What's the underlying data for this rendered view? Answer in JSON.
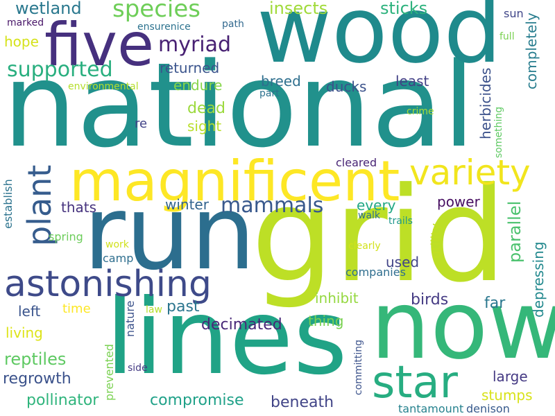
{
  "words": [
    {
      "text": "national",
      "color": "#21918c",
      "v": false
    },
    {
      "text": "wood",
      "color": "#1f8a8c",
      "v": false
    },
    {
      "text": "run",
      "color": "#2c6e8e",
      "v": false
    },
    {
      "text": "grid",
      "color": "#bddf26",
      "v": false
    },
    {
      "text": "now",
      "color": "#35b779",
      "v": false
    },
    {
      "text": "lines",
      "color": "#20a386",
      "v": false
    },
    {
      "text": "five",
      "color": "#46307e",
      "v": false
    },
    {
      "text": "magnificent",
      "color": "#fde725",
      "v": false
    },
    {
      "text": "variety",
      "color": "#f1e51d",
      "v": false
    },
    {
      "text": "astonishing",
      "color": "#3e4a89",
      "v": false
    },
    {
      "text": "star",
      "color": "#27ad81",
      "v": false
    },
    {
      "text": "plant",
      "color": "#365c8d",
      "v": true
    },
    {
      "text": "species",
      "color": "#6ece58",
      "v": false
    },
    {
      "text": "myriad",
      "color": "#482173",
      "v": false
    },
    {
      "text": "supported",
      "color": "#29af7f",
      "v": false
    },
    {
      "text": "mammals",
      "color": "#38588c",
      "v": false
    },
    {
      "text": "wetland",
      "color": "#2a788e",
      "v": false
    },
    {
      "text": "insects",
      "color": "#a0da39",
      "v": false
    },
    {
      "text": "sticks",
      "color": "#2db27d",
      "v": false
    },
    {
      "text": "returned",
      "color": "#3a548c",
      "v": false
    },
    {
      "text": "endure",
      "color": "#86d549",
      "v": false
    },
    {
      "text": "dead",
      "color": "#9bd93c",
      "v": false
    },
    {
      "text": "sight",
      "color": "#b8de29",
      "v": false
    },
    {
      "text": "re",
      "color": "#414287",
      "v": false
    },
    {
      "text": "breed",
      "color": "#2e6f8e",
      "v": false
    },
    {
      "text": "ducks",
      "color": "#3b528b",
      "v": false
    },
    {
      "text": "least",
      "color": "#424086",
      "v": false
    },
    {
      "text": "herbicides",
      "color": "#3b518b",
      "v": true
    },
    {
      "text": "completely",
      "color": "#287d8e",
      "v": true
    },
    {
      "text": "winter",
      "color": "#32648e",
      "v": false
    },
    {
      "text": "thats",
      "color": "#46337e",
      "v": false
    },
    {
      "text": "power",
      "color": "#470e61",
      "v": false
    },
    {
      "text": "every",
      "color": "#22a884",
      "v": false
    },
    {
      "text": "used",
      "color": "#414487",
      "v": false
    },
    {
      "text": "parallel",
      "color": "#4ac16d",
      "v": true
    },
    {
      "text": "depressing",
      "color": "#23898e",
      "v": true
    },
    {
      "text": "utility",
      "color": "#c2df23",
      "v": true
    },
    {
      "text": "inhibit",
      "color": "#95d840",
      "v": false
    },
    {
      "text": "birds",
      "color": "#443a83",
      "v": false
    },
    {
      "text": "far",
      "color": "#2a778e",
      "v": false
    },
    {
      "text": "left",
      "color": "#3a548c",
      "v": false
    },
    {
      "text": "time",
      "color": "#fde725",
      "v": false
    },
    {
      "text": "past",
      "color": "#2b758e",
      "v": false
    },
    {
      "text": "living",
      "color": "#dde318",
      "v": false
    },
    {
      "text": "decimated",
      "color": "#482878",
      "v": false
    },
    {
      "text": "thing",
      "color": "#79d151",
      "v": false
    },
    {
      "text": "reptiles",
      "color": "#5ec962",
      "v": false
    },
    {
      "text": "regrowth",
      "color": "#3b528b",
      "v": false
    },
    {
      "text": "pollinator",
      "color": "#2fb47c",
      "v": false
    },
    {
      "text": "compromise",
      "color": "#1fa188",
      "v": false
    },
    {
      "text": "beneath",
      "color": "#414487",
      "v": false
    },
    {
      "text": "large",
      "color": "#443983",
      "v": false
    },
    {
      "text": "stumps",
      "color": "#d8e219",
      "v": false
    },
    {
      "text": "establish",
      "color": "#2c738e",
      "v": true
    },
    {
      "text": "spring",
      "color": "#6ccd5a",
      "v": false
    },
    {
      "text": "work",
      "color": "#d0e11c",
      "v": false
    },
    {
      "text": "camp",
      "color": "#2e6e8e",
      "v": false
    },
    {
      "text": "law",
      "color": "#b5de2b",
      "v": false
    },
    {
      "text": "nature",
      "color": "#3b528b",
      "v": true
    },
    {
      "text": "prevented",
      "color": "#7ad151",
      "v": true
    },
    {
      "text": "side",
      "color": "#443a83",
      "v": false
    },
    {
      "text": "committing",
      "color": "#3b528b",
      "v": true
    },
    {
      "text": "tantamount",
      "color": "#26828e",
      "v": false
    },
    {
      "text": "denison",
      "color": "#375a8c",
      "v": false
    },
    {
      "text": "companies",
      "color": "#2e6d8e",
      "v": false
    },
    {
      "text": "clearly",
      "color": "#d2e21b",
      "v": false
    },
    {
      "text": "walk",
      "color": "#2d708e",
      "v": false
    },
    {
      "text": "trails",
      "color": "#1f978b",
      "v": false
    },
    {
      "text": "cleared",
      "color": "#482475",
      "v": false
    },
    {
      "text": "crime",
      "color": "#a5db36",
      "v": false
    },
    {
      "text": "something",
      "color": "#5ec962",
      "v": true
    },
    {
      "text": "part",
      "color": "#2c718e",
      "v": false
    },
    {
      "text": "environmental",
      "color": "#b5de2b",
      "v": false
    },
    {
      "text": "hope",
      "color": "#d5e21a",
      "v": false
    },
    {
      "text": "marked",
      "color": "#481668",
      "v": false
    },
    {
      "text": "ensurenice",
      "color": "#2c728e",
      "v": false
    },
    {
      "text": "path",
      "color": "#31688e",
      "v": false
    },
    {
      "text": "sun",
      "color": "#404688",
      "v": false
    },
    {
      "text": "full",
      "color": "#7ad151",
      "v": false
    }
  ]
}
